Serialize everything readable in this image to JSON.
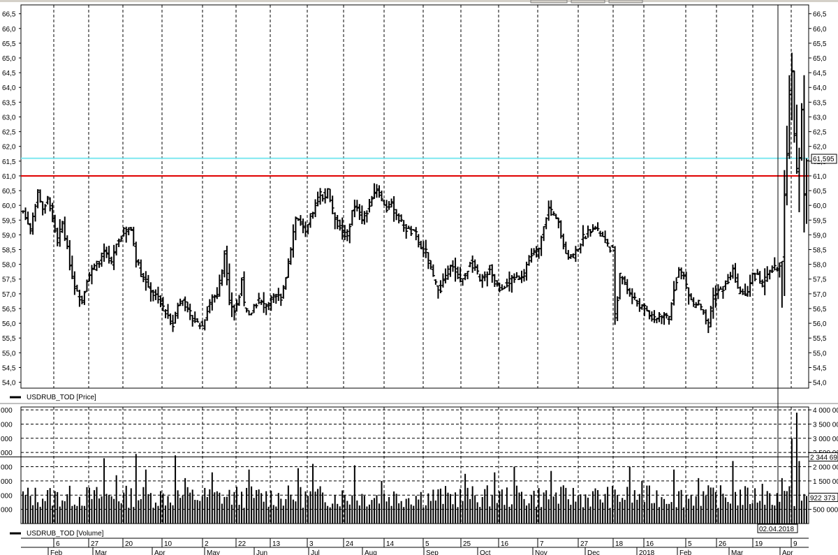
{
  "chart_data": [
    {
      "type": "bar",
      "subtype": "ohlc",
      "legend_label": "USDRUB_TOD [Price]",
      "ylim": [
        53.8,
        66.8
      ],
      "y_ticks": [
        "54,0",
        "54,5",
        "55,0",
        "55,5",
        "56,0",
        "56,5",
        "57,0",
        "57,5",
        "58,0",
        "58,5",
        "59,0",
        "59,5",
        "60,0",
        "60,5",
        "61,0",
        "61,5",
        "62,0",
        "62,5",
        "63,0",
        "63,5",
        "64,0",
        "64,5",
        "65,0",
        "65,5",
        "66,0",
        "66,5"
      ],
      "horizontal_lines": [
        {
          "value": 61.0,
          "color": "#e00000"
        },
        {
          "value": 61.595,
          "color": "#7fe8f0"
        }
      ],
      "last_value_label": "61,595",
      "grid": "vertical dashed",
      "anchors": [
        [
          0,
          59.8
        ],
        [
          3,
          59.2
        ],
        [
          6,
          60.5
        ],
        [
          8,
          59.8
        ],
        [
          10,
          60.3
        ],
        [
          12,
          59.5
        ],
        [
          14,
          58.8
        ],
        [
          16,
          59.4
        ],
        [
          18,
          58.5
        ],
        [
          20,
          57.6
        ],
        [
          22,
          57.0
        ],
        [
          24,
          56.8
        ],
        [
          26,
          57.5
        ],
        [
          28,
          57.8
        ],
        [
          30,
          58.0
        ],
        [
          33,
          58.4
        ],
        [
          36,
          58.0
        ],
        [
          38,
          58.7
        ],
        [
          41,
          59.1
        ],
        [
          44,
          59.2
        ],
        [
          46,
          58.2
        ],
        [
          48,
          57.7
        ],
        [
          50,
          57.4
        ],
        [
          53,
          57.0
        ],
        [
          55,
          56.9
        ],
        [
          57,
          56.5
        ],
        [
          59,
          56.2
        ],
        [
          61,
          56.0
        ],
        [
          63,
          56.6
        ],
        [
          65,
          56.9
        ],
        [
          67,
          56.4
        ],
        [
          69,
          56.2
        ],
        [
          71,
          56.0
        ],
        [
          73,
          55.9
        ],
        [
          75,
          56.5
        ],
        [
          77,
          56.9
        ],
        [
          79,
          57.0
        ],
        [
          81,
          57.8
        ],
        [
          82,
          58.4
        ],
        [
          84,
          56.8
        ],
        [
          86,
          56.4
        ],
        [
          88,
          56.9
        ],
        [
          89,
          57.6
        ],
        [
          90,
          56.6
        ],
        [
          92,
          56.2
        ],
        [
          94,
          56.6
        ],
        [
          96,
          56.8
        ],
        [
          98,
          56.6
        ],
        [
          100,
          56.7
        ],
        [
          103,
          56.9
        ],
        [
          105,
          56.9
        ],
        [
          107,
          57.6
        ],
        [
          109,
          58.6
        ],
        [
          111,
          59.6
        ],
        [
          113,
          59.4
        ],
        [
          115,
          59.0
        ],
        [
          117,
          59.6
        ],
        [
          119,
          60.0
        ],
        [
          121,
          60.4
        ],
        [
          123,
          60.3
        ],
        [
          124,
          60.6
        ],
        [
          126,
          59.8
        ],
        [
          128,
          59.4
        ],
        [
          130,
          59.1
        ],
        [
          132,
          59.0
        ],
        [
          134,
          59.8
        ],
        [
          136,
          60.0
        ],
        [
          138,
          59.5
        ],
        [
          140,
          59.8
        ],
        [
          142,
          60.3
        ],
        [
          144,
          60.6
        ],
        [
          146,
          60.2
        ],
        [
          148,
          59.9
        ],
        [
          150,
          60.0
        ],
        [
          152,
          59.7
        ],
        [
          154,
          59.4
        ],
        [
          156,
          59.2
        ],
        [
          158,
          59.1
        ],
        [
          160,
          59.0
        ],
        [
          162,
          58.5
        ],
        [
          164,
          58.4
        ],
        [
          166,
          57.8
        ],
        [
          168,
          57.3
        ],
        [
          170,
          57.2
        ],
        [
          172,
          57.6
        ],
        [
          174,
          57.9
        ],
        [
          176,
          57.8
        ],
        [
          178,
          57.5
        ],
        [
          180,
          57.6
        ],
        [
          182,
          58.1
        ],
        [
          184,
          57.9
        ],
        [
          186,
          57.4
        ],
        [
          188,
          57.6
        ],
        [
          190,
          57.9
        ],
        [
          192,
          57.4
        ],
        [
          194,
          57.2
        ],
        [
          196,
          57.3
        ],
        [
          198,
          57.4
        ],
        [
          200,
          57.5
        ],
        [
          202,
          57.6
        ],
        [
          204,
          57.7
        ],
        [
          206,
          58.2
        ],
        [
          208,
          58.4
        ],
        [
          210,
          58.5
        ],
        [
          212,
          59.4
        ],
        [
          214,
          59.9
        ],
        [
          216,
          59.6
        ],
        [
          218,
          59.4
        ],
        [
          220,
          58.6
        ],
        [
          222,
          58.3
        ],
        [
          224,
          58.3
        ],
        [
          226,
          58.6
        ],
        [
          228,
          58.9
        ],
        [
          230,
          59.1
        ],
        [
          232,
          59.3
        ],
        [
          234,
          59.1
        ],
        [
          236,
          58.9
        ],
        [
          238,
          58.6
        ],
        [
          240,
          58.5
        ],
        [
          241,
          56.2
        ],
        [
          243,
          57.6
        ],
        [
          245,
          57.4
        ],
        [
          247,
          57.0
        ],
        [
          249,
          56.8
        ],
        [
          251,
          56.6
        ],
        [
          253,
          56.5
        ],
        [
          255,
          56.3
        ],
        [
          257,
          56.1
        ],
        [
          259,
          56.3
        ],
        [
          261,
          56.2
        ],
        [
          263,
          56.2
        ],
        [
          265,
          57.2
        ],
        [
          267,
          57.8
        ],
        [
          269,
          57.6
        ],
        [
          271,
          57.0
        ],
        [
          273,
          56.6
        ],
        [
          275,
          56.7
        ],
        [
          277,
          56.3
        ],
        [
          279,
          55.9
        ],
        [
          281,
          56.9
        ],
        [
          283,
          57.1
        ],
        [
          285,
          57.2
        ],
        [
          287,
          57.5
        ],
        [
          289,
          57.8
        ],
        [
          291,
          57.1
        ],
        [
          293,
          57.0
        ],
        [
          295,
          57.1
        ],
        [
          297,
          57.6
        ],
        [
          299,
          57.6
        ],
        [
          301,
          57.3
        ],
        [
          303,
          57.6
        ],
        [
          305,
          57.8
        ],
        [
          307,
          57.9
        ],
        [
          309,
          58.2
        ],
        [
          310,
          60.3
        ],
        [
          311,
          61.8
        ],
        [
          312,
          63.8
        ],
        [
          313,
          64.5
        ],
        [
          314,
          62.4
        ],
        [
          315,
          61.2
        ],
        [
          316,
          61.7
        ],
        [
          317,
          63.2
        ],
        [
          318,
          60.4
        ],
        [
          319,
          61.6
        ]
      ]
    },
    {
      "type": "bar",
      "legend_label": "USDRUB_TOD [Volume]",
      "ylim": [
        0,
        4100000
      ],
      "y_ticks": [
        "500 000",
        "1 000 000",
        "1 500 000",
        "2 000 000",
        "2 500 000",
        "3 000 000",
        "3 500 000",
        "4 000 000"
      ],
      "y_ticks_left": [
        "000",
        "000",
        "000",
        "000",
        "000",
        "000",
        "000",
        "000"
      ],
      "y_tick_values": [
        500000,
        1000000,
        1500000,
        2000000,
        2500000,
        3000000,
        3500000,
        4000000
      ],
      "horizontal_lines": [
        {
          "value": 2344690,
          "color": "#000000"
        }
      ],
      "markers": [
        {
          "label": "2 344 69",
          "value": 2344690
        },
        {
          "label": "922 373",
          "value": 922373
        }
      ],
      "cursor_label": "02.04.2018",
      "spikes": [
        [
          33,
          2300000
        ],
        [
          38,
          1700000
        ],
        [
          46,
          2450000
        ],
        [
          50,
          1900000
        ],
        [
          62,
          2400000
        ],
        [
          66,
          1600000
        ],
        [
          77,
          1800000
        ],
        [
          92,
          1900000
        ],
        [
          112,
          1950000
        ],
        [
          118,
          2100000
        ],
        [
          135,
          2050000
        ],
        [
          146,
          1500000
        ],
        [
          180,
          1750000
        ],
        [
          192,
          1800000
        ],
        [
          200,
          2000000
        ],
        [
          215,
          1850000
        ],
        [
          247,
          2000000
        ],
        [
          252,
          1500000
        ],
        [
          265,
          1900000
        ],
        [
          275,
          1600000
        ],
        [
          289,
          2200000
        ],
        [
          301,
          1400000
        ],
        [
          309,
          1600000
        ],
        [
          313,
          3000000
        ],
        [
          315,
          3900000
        ],
        [
          316,
          2200000
        ]
      ]
    }
  ],
  "x_axis": {
    "day_labels": [
      "6",
      "27",
      "20",
      "10",
      "2",
      "22",
      "13",
      "3",
      "24",
      "14",
      "5",
      "25",
      "16",
      "7",
      "27",
      "18",
      "16",
      "5",
      "26",
      "19",
      "9"
    ],
    "month_labels": [
      "Feb",
      "Mar",
      "Apr",
      "May",
      "Jun",
      "Jul",
      "Aug",
      "Sep",
      "Oct",
      "Nov",
      "Dec",
      "2018",
      "Feb",
      "Mar",
      "Apr"
    ]
  }
}
